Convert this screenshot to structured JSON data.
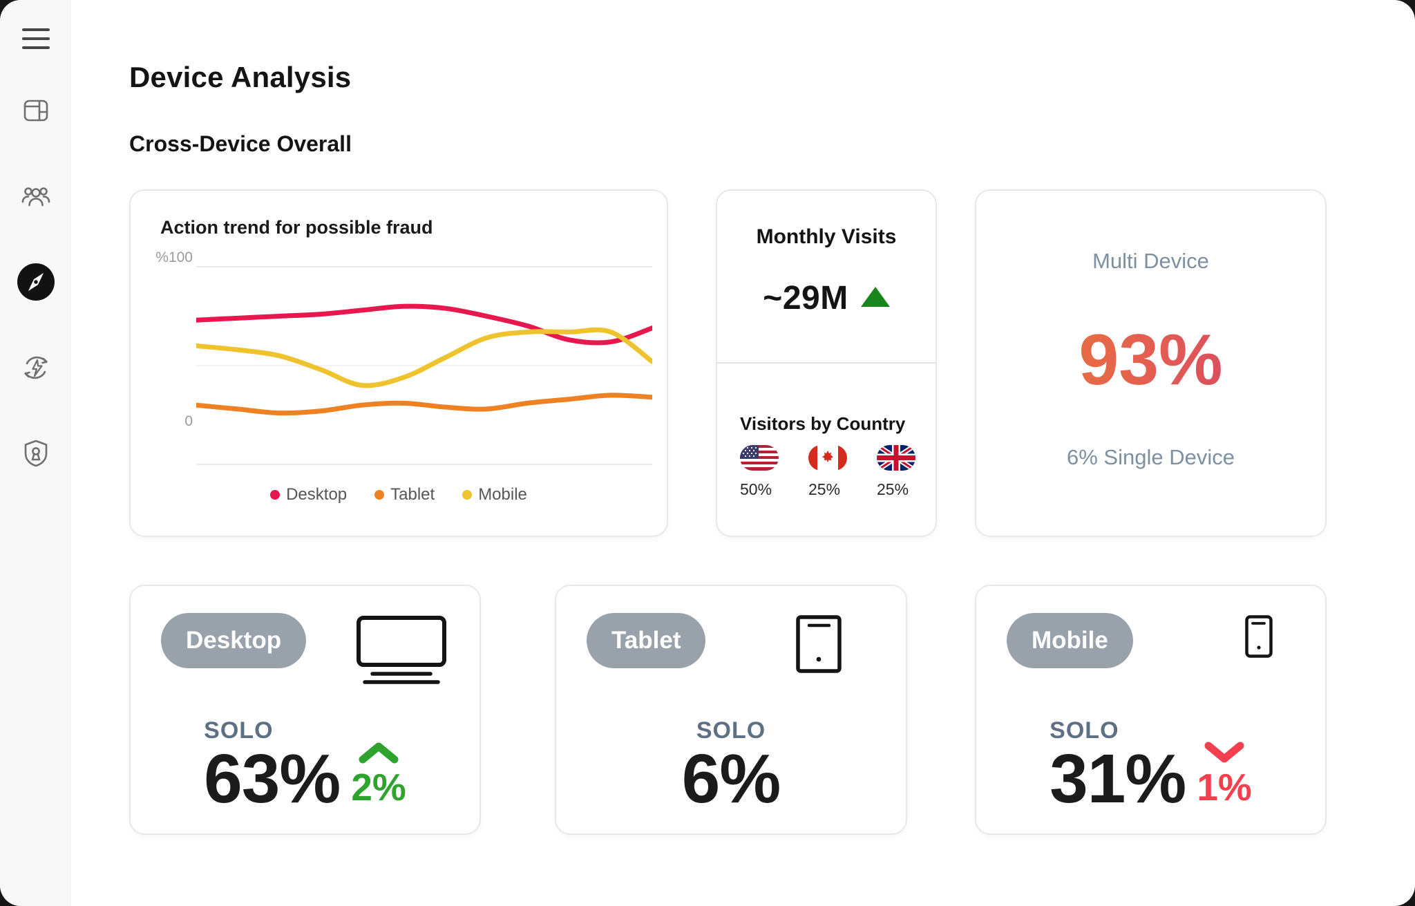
{
  "window": {
    "title": "Device Analysis",
    "subtitle": "Cross-Device Overall"
  },
  "sidebar": {
    "items": [
      {
        "icon": "menu-icon",
        "active": false
      },
      {
        "icon": "dashboard-layout-icon",
        "active": false
      },
      {
        "icon": "users-icon",
        "active": false
      },
      {
        "icon": "compass-icon",
        "active": true
      },
      {
        "icon": "sync-energy-icon",
        "active": false
      },
      {
        "icon": "shield-lock-icon",
        "active": false
      }
    ]
  },
  "fraud_chart": {
    "title": "Action trend for possible fraud",
    "y_axis_top_label": "%100",
    "y_axis_bottom_label": "0",
    "chart_data": {
      "type": "line",
      "x": [
        1,
        2,
        3,
        4,
        5,
        6,
        7,
        8,
        9,
        10,
        11,
        12
      ],
      "series": [
        {
          "name": "Desktop",
          "color": "#e8174d",
          "values": [
            73,
            74,
            75,
            76,
            78,
            80,
            79,
            75,
            70,
            63,
            62,
            69
          ]
        },
        {
          "name": "Tablet",
          "color": "#ee8122",
          "values": [
            30,
            28,
            26,
            27,
            30,
            31,
            29,
            28,
            31,
            33,
            35,
            34
          ]
        },
        {
          "name": "Mobile",
          "color": "#efc32d",
          "values": [
            60,
            58,
            55,
            48,
            40,
            44,
            54,
            64,
            67,
            67,
            67,
            52
          ]
        }
      ],
      "ylim": [
        0,
        100
      ],
      "y_gridlines": [
        100,
        50,
        0
      ],
      "grid": true,
      "legend_position": "bottom"
    }
  },
  "monthly_visits": {
    "title": "Monthly Visits",
    "value": "~29M",
    "trend": "up",
    "trend_color": "#18861d",
    "countries_section": {
      "title": "Visitors by Country",
      "countries": [
        {
          "name": "United States",
          "flag_icon": "us-flag-icon",
          "share": "50%"
        },
        {
          "name": "Canada",
          "flag_icon": "canada-flag-icon",
          "share": "25%"
        },
        {
          "name": "United Kingdom",
          "flag_icon": "uk-flag-icon",
          "share": "25%"
        }
      ]
    }
  },
  "multi_device": {
    "title": "Multi Device",
    "value": "93%",
    "subtext": "6% Single Device",
    "value_gradient": [
      "#ec7f2e",
      "#e25b54",
      "#c93a70"
    ]
  },
  "solo_cards": [
    {
      "badge": "Desktop",
      "icon": "desktop-monitor-icon",
      "solo_label": "SOLO",
      "value": "63%",
      "delta": {
        "value": "2%",
        "direction": "up",
        "color": "#2ea32e"
      }
    },
    {
      "badge": "Tablet",
      "icon": "tablet-icon",
      "solo_label": "SOLO",
      "value": "6%",
      "delta": null
    },
    {
      "badge": "Mobile",
      "icon": "mobile-phone-icon",
      "solo_label": "SOLO",
      "value": "31%",
      "delta": {
        "value": "1%",
        "direction": "down",
        "color": "#f4404e"
      }
    }
  ]
}
